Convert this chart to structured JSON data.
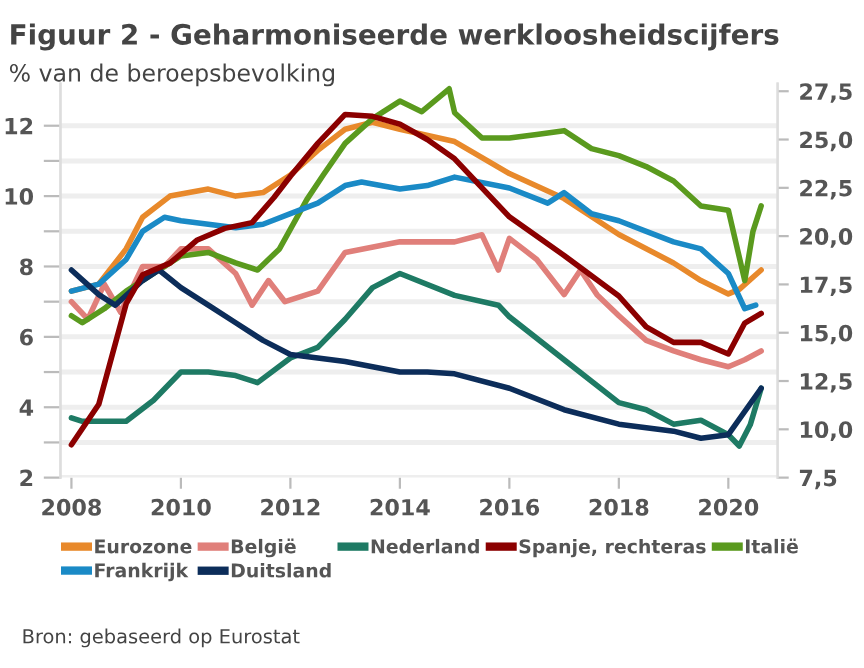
{
  "chart_data": {
    "type": "line",
    "title": "Figuur 2 - Geharmoniseerde werkloosheidscijfers",
    "subtitle": "% van de beroepsbevolking",
    "annotations": [
      "Bron: gebaseerd op Eurostat"
    ],
    "xlim": [
      2007.8,
      2020.9
    ],
    "xticks": [
      2008,
      2010,
      2012,
      2014,
      2016,
      2018,
      2020
    ],
    "ylim": [
      2,
      13.2
    ],
    "yticks": [
      2,
      {
        "value": 3,
        "label": null
      },
      4,
      {
        "value": 5,
        "label": null
      },
      6,
      {
        "value": 7,
        "label": null
      },
      8,
      {
        "value": 9,
        "label": null
      },
      10,
      {
        "value": 11,
        "label": null
      },
      12
    ],
    "y2lim": [
      7.5,
      27.9
    ],
    "y2ticks": [
      {
        "value": 7.5,
        "label": "7,5"
      },
      {
        "value": 10,
        "label": "10,0"
      },
      {
        "value": 12.5,
        "label": "12,5"
      },
      {
        "value": 15,
        "label": "15,0"
      },
      {
        "value": 17.5,
        "label": "17,5"
      },
      {
        "value": 20,
        "label": "20,0"
      },
      {
        "value": 22.5,
        "label": "22,5"
      },
      {
        "value": 25,
        "label": "25,0"
      },
      {
        "value": 27.5,
        "label": "27,5"
      }
    ],
    "grid": "y",
    "legend": "bottom",
    "marker": "none",
    "line_style": "solid",
    "series": [
      {
        "name": "Eurozone",
        "color": "#e8892b",
        "x": [
          2008,
          2008.5,
          2009,
          2009.3,
          2009.8,
          2010.5,
          2011,
          2011.5,
          2012,
          2012.5,
          2013,
          2013.5,
          2014,
          2015,
          2016,
          2017,
          2018,
          2019,
          2019.5,
          2020,
          2020.2,
          2020.6
        ],
        "values": [
          7.3,
          7.5,
          8.5,
          9.4,
          10.0,
          10.2,
          10.0,
          10.1,
          10.6,
          11.3,
          11.9,
          12.1,
          11.9,
          11.55,
          10.64,
          9.93,
          8.91,
          8.1,
          7.6,
          7.22,
          7.35,
          7.9
        ]
      },
      {
        "name": "België",
        "color": "#e07f7a",
        "x": [
          2008,
          2008.3,
          2008.6,
          2008.9,
          2009.3,
          2009.7,
          2010,
          2010.5,
          2011,
          2011.3,
          2011.6,
          2011.9,
          2012.5,
          2013,
          2014,
          2015,
          2015.5,
          2015.8,
          2016,
          2016.5,
          2017,
          2017.3,
          2017.6,
          2018,
          2018.5,
          2019,
          2019.5,
          2020,
          2020.3,
          2020.6
        ],
        "values": [
          7.0,
          6.5,
          7.5,
          6.7,
          8.0,
          8.0,
          8.5,
          8.5,
          7.8,
          6.9,
          7.6,
          7.0,
          7.3,
          8.4,
          8.7,
          8.7,
          8.9,
          7.9,
          8.8,
          8.2,
          7.2,
          7.9,
          7.2,
          6.6,
          5.9,
          5.6,
          5.35,
          5.15,
          5.35,
          5.6
        ]
      },
      {
        "name": "Nederland",
        "color": "#1e7a64",
        "x": [
          2008,
          2008.2,
          2008.5,
          2009,
          2009.5,
          2010,
          2010.5,
          2011,
          2011.4,
          2012,
          2012.5,
          2013,
          2013.5,
          2014,
          2015,
          2015.8,
          2016,
          2017,
          2018,
          2018.5,
          2019,
          2019.5,
          2020,
          2020.2,
          2020.4,
          2020.6
        ],
        "values": [
          3.7,
          3.6,
          3.6,
          3.6,
          4.2,
          5.0,
          5.0,
          4.9,
          4.7,
          5.4,
          5.7,
          6.5,
          7.4,
          7.8,
          7.18,
          6.9,
          6.57,
          5.35,
          4.13,
          3.93,
          3.52,
          3.63,
          3.22,
          2.9,
          3.5,
          4.54
        ]
      },
      {
        "name": "Spanje, rechteras",
        "color": "#8b0000",
        "axis": "y2",
        "x": [
          2008,
          2008.5,
          2009,
          2009.3,
          2009.8,
          2010.3,
          2010.8,
          2011.3,
          2011.7,
          2012,
          2012.5,
          2013,
          2013.5,
          2014,
          2014.5,
          2015,
          2016,
          2017,
          2018,
          2018.5,
          2019,
          2019.5,
          2020,
          2020.3,
          2020.6
        ],
        "values": [
          9.2,
          11.3,
          16.5,
          18.0,
          18.6,
          19.8,
          20.4,
          20.7,
          22.0,
          23.1,
          24.8,
          26.3,
          26.2,
          25.8,
          25.0,
          24.0,
          21.0,
          19.0,
          16.9,
          15.3,
          14.5,
          14.5,
          13.9,
          15.5,
          16.0
        ]
      },
      {
        "name": "Italië",
        "color": "#5a9a1e",
        "x": [
          2008,
          2008.2,
          2008.6,
          2009,
          2009.5,
          2010,
          2010.5,
          2011,
          2011.4,
          2011.8,
          2012.3,
          2012.6,
          2013,
          2013.5,
          2014,
          2014.4,
          2014.9,
          2015,
          2015.5,
          2016,
          2016.5,
          2017,
          2017.5,
          2018,
          2018.5,
          2019,
          2019.5,
          2020,
          2020.3,
          2020.45,
          2020.6
        ],
        "values": [
          6.6,
          6.4,
          6.8,
          7.3,
          7.8,
          8.3,
          8.4,
          8.1,
          7.9,
          8.5,
          9.9,
          10.6,
          11.5,
          12.2,
          12.7,
          12.4,
          13.05,
          12.37,
          11.65,
          11.65,
          11.75,
          11.86,
          11.35,
          11.15,
          10.84,
          10.43,
          9.72,
          9.6,
          7.6,
          9.0,
          9.72
        ]
      },
      {
        "name": "Frankrijk",
        "color": "#1a8ac6",
        "x": [
          2008,
          2008.5,
          2009,
          2009.3,
          2009.7,
          2010,
          2011,
          2011.5,
          2012,
          2012.5,
          2013,
          2013.3,
          2014,
          2014.5,
          2015,
          2016,
          2016.7,
          2017,
          2017.5,
          2018,
          2018.5,
          2019,
          2019.5,
          2020,
          2020.3,
          2020.5
        ],
        "values": [
          7.3,
          7.5,
          8.2,
          9.0,
          9.4,
          9.3,
          9.1,
          9.2,
          9.5,
          9.8,
          10.3,
          10.4,
          10.2,
          10.3,
          10.54,
          10.23,
          9.8,
          10.1,
          9.5,
          9.3,
          9.0,
          8.7,
          8.5,
          7.8,
          6.8,
          6.9
        ]
      },
      {
        "name": "Duitsland",
        "color": "#0c2d5a",
        "x": [
          2008,
          2008.5,
          2008.8,
          2009.3,
          2009.6,
          2010,
          2010.5,
          2011,
          2011.5,
          2012,
          2012.5,
          2013,
          2014,
          2014.5,
          2015,
          2016,
          2017,
          2018,
          2019,
          2019.5,
          2020,
          2020.6
        ],
        "values": [
          7.9,
          7.2,
          6.9,
          7.6,
          7.9,
          7.4,
          6.9,
          6.4,
          5.9,
          5.5,
          5.4,
          5.3,
          5.0,
          5.0,
          4.95,
          4.54,
          3.93,
          3.52,
          3.32,
          3.12,
          3.22,
          4.54
        ]
      }
    ]
  }
}
